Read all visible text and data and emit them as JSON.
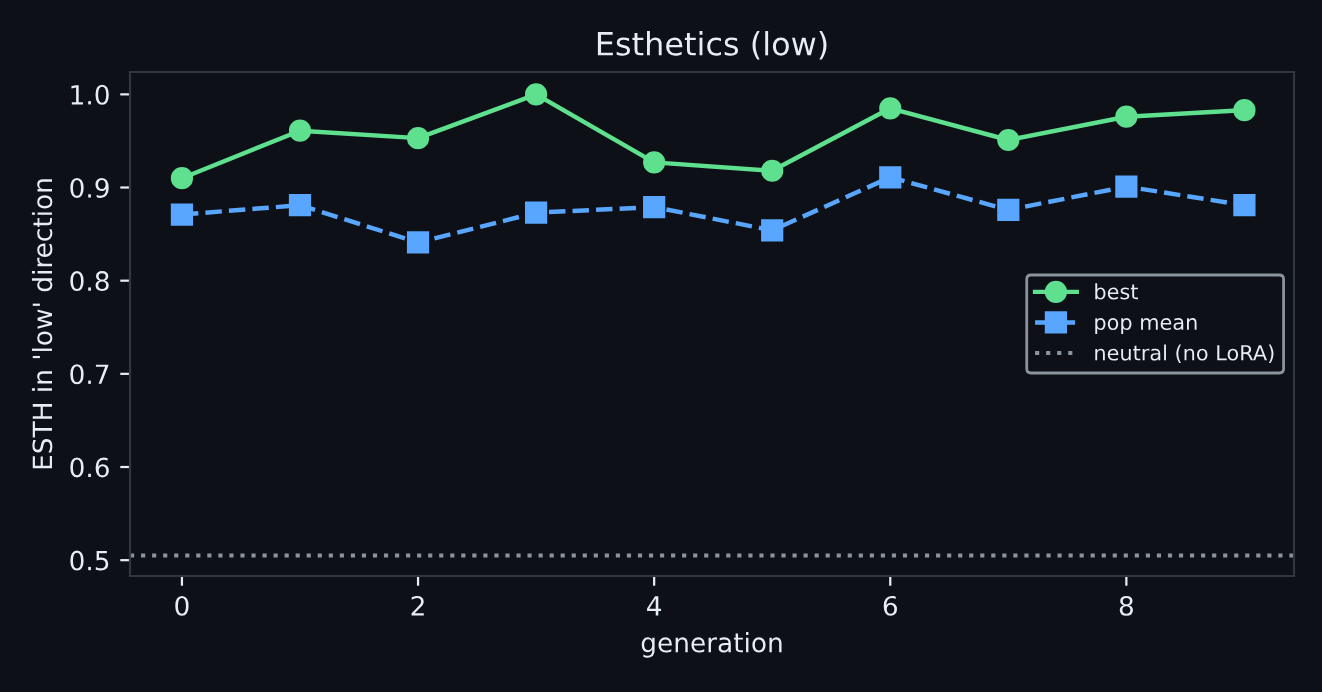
{
  "chart_data": {
    "type": "line",
    "title": "Esthetics (low)",
    "xlabel": "generation",
    "ylabel": "ESTH in 'low' direction",
    "x": [
      0,
      1,
      2,
      3,
      4,
      5,
      6,
      7,
      8,
      9
    ],
    "series": [
      {
        "name": "best",
        "color": "#5ee08f",
        "marker": "circle",
        "line_style": "solid",
        "values": [
          0.91,
          0.961,
          0.953,
          1.0,
          0.927,
          0.918,
          0.985,
          0.951,
          0.976,
          0.983
        ]
      },
      {
        "name": "pop mean",
        "color": "#58a6ff",
        "marker": "square",
        "line_style": "dashed",
        "values": [
          0.871,
          0.881,
          0.841,
          0.873,
          0.879,
          0.854,
          0.911,
          0.876,
          0.901,
          0.881
        ]
      }
    ],
    "ref_lines": [
      {
        "axis": "y",
        "value": 0.505,
        "label": "neutral (no LoRA)",
        "color": "#8b949e",
        "line_style": "dotted"
      }
    ],
    "xlim": [
      -0.44,
      9.42
    ],
    "ylim": [
      0.483,
      1.024
    ],
    "xticks": [
      0,
      2,
      4,
      6,
      8
    ],
    "yticks": [
      {
        "value": 0.5,
        "label": "0.5"
      },
      {
        "value": 0.6,
        "label": "0.6"
      },
      {
        "value": 0.7,
        "label": "0.7"
      },
      {
        "value": 0.8,
        "label": "0.8"
      },
      {
        "value": 0.9,
        "label": "0.9"
      },
      {
        "value": 1.0,
        "label": "1.0"
      }
    ],
    "grid": false,
    "legend": "right"
  }
}
